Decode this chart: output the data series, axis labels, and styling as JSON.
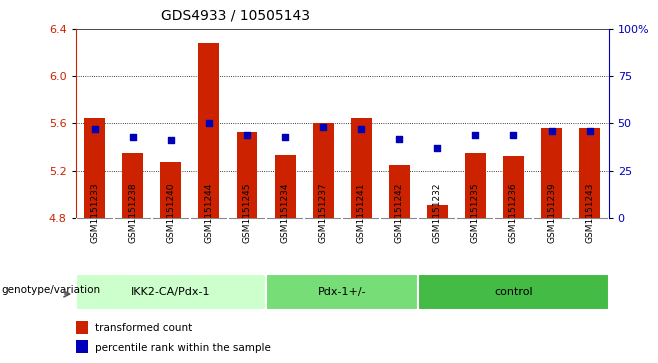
{
  "title": "GDS4933 / 10505143",
  "samples": [
    "GSM1151233",
    "GSM1151238",
    "GSM1151240",
    "GSM1151244",
    "GSM1151245",
    "GSM1151234",
    "GSM1151237",
    "GSM1151241",
    "GSM1151242",
    "GSM1151232",
    "GSM1151235",
    "GSM1151236",
    "GSM1151239",
    "GSM1151243"
  ],
  "transformed_count": [
    5.65,
    5.35,
    5.27,
    6.28,
    5.53,
    5.33,
    5.6,
    5.65,
    5.25,
    4.91,
    5.35,
    5.32,
    5.56,
    5.56
  ],
  "percentile_rank": [
    47,
    43,
    41,
    50,
    44,
    43,
    48,
    47,
    42,
    37,
    44,
    44,
    46,
    46
  ],
  "groups": [
    {
      "label": "IKK2-CA/Pdx-1",
      "start": 0,
      "end": 5,
      "color": "#ccffcc"
    },
    {
      "label": "Pdx-1+/-",
      "start": 5,
      "end": 9,
      "color": "#77dd77"
    },
    {
      "label": "control",
      "start": 9,
      "end": 14,
      "color": "#44bb44"
    }
  ],
  "ylim_left": [
    4.8,
    6.4
  ],
  "ylim_right": [
    0,
    100
  ],
  "bar_color": "#cc2200",
  "dot_color": "#0000bb",
  "background_color": "#ffffff",
  "xlabel_group": "genotype/variation",
  "legend_transformed": "transformed count",
  "legend_percentile": "percentile rank within the sample",
  "left_yticks": [
    4.8,
    5.2,
    5.6,
    6.0,
    6.4
  ],
  "right_yticks": [
    0,
    25,
    50,
    75,
    100
  ],
  "right_yticklabels": [
    "0",
    "25",
    "50",
    "75",
    "100%"
  ],
  "sample_box_color": "#d8d8d8",
  "sample_box_edge": "#ffffff"
}
